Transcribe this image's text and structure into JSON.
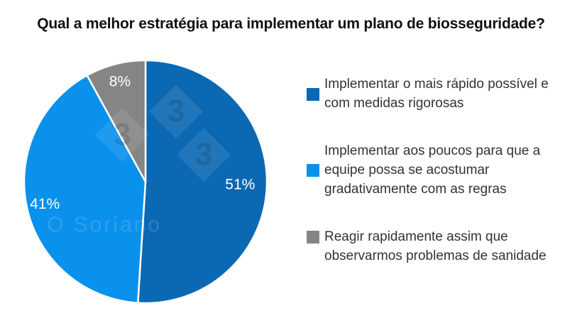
{
  "title": "Qual a melhor estratégia para implementar um plano de biosseguridade?",
  "chart_data": {
    "type": "pie",
    "title": "Qual a melhor estratégia para implementar um plano de biosseguridade?",
    "categories": [
      "Implementar o mais rápido possível e com medidas rigorosas",
      "Implementar aos poucos para que a equipe possa se acostumar gradativamente com as regras",
      "Reagir rapidamente assim que observarmos problemas de sanidade"
    ],
    "values": [
      51,
      41,
      8
    ],
    "unit": "%",
    "slice_labels": [
      "51%",
      "41%",
      "8%"
    ],
    "colors": [
      "#0b69b4",
      "#0a91ec",
      "#858585"
    ],
    "slice_label_color": "#ffffff",
    "separator_color": "#ffffff",
    "start_angle_deg": 0,
    "direction": "clockwise",
    "legend_position": "right"
  },
  "watermark": {
    "diamond_text": "3",
    "signature": "O Soriano"
  }
}
